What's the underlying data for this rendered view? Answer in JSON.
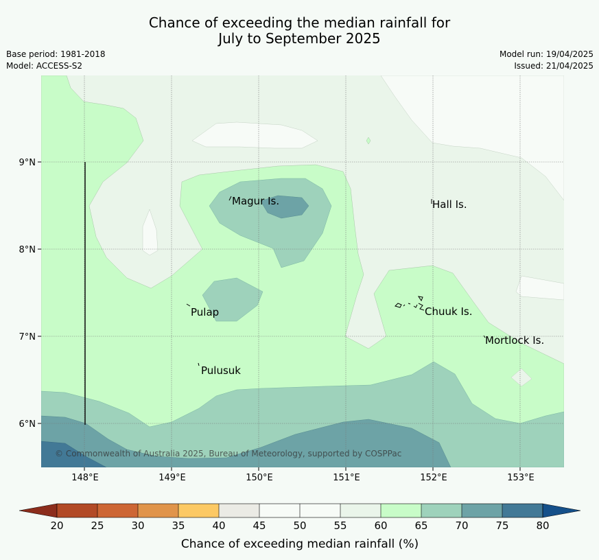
{
  "title_line1": "Chance of exceeding the median rainfall for",
  "title_line2": "July to September 2025",
  "meta_left": {
    "base_period": "Base period: 1981-2018",
    "model": "Model: ACCESS-S2"
  },
  "meta_right": {
    "model_run": "Model run: 19/04/2025",
    "issued": "Issued: 21/04/2025"
  },
  "map": {
    "lon_labels": [
      "148°E",
      "149°E",
      "150°E",
      "151°E",
      "152°E",
      "153°E"
    ],
    "lat_labels": [
      "9°N",
      "8°N",
      "7°N",
      "6°N"
    ],
    "places": {
      "magur": "Magur Is.",
      "hall": "Hall Is.",
      "pulap": "Pulap",
      "chuuk": "Chuuk Is.",
      "mortlock": "Mortlock Is.",
      "pulusuk": "Pulusuk"
    },
    "copyright": "© Commonwealth of Australia 2025, Bureau of Meteorology, supported by COSPPac"
  },
  "colorbar": {
    "ticks": [
      "20",
      "25",
      "30",
      "35",
      "40",
      "45",
      "50",
      "55",
      "60",
      "65",
      "70",
      "75",
      "80"
    ],
    "label": "Chance of exceeding median rainfall (%)",
    "colors": {
      "below_20": "#8c2d1c",
      "20_25": "#b24a26",
      "25_30": "#cd6634",
      "30_35": "#e0944a",
      "35_40": "#fcc964",
      "40_45": "#ebebe5",
      "45_50": "#f7fbf7",
      "50_55": "#f7fbf7",
      "55_60": "#eaf5ea",
      "60_65": "#c8fcc8",
      "65_70": "#9ed2bb",
      "70_75": "#6da3a6",
      "75_80": "#427996",
      "above_80": "#15508a"
    }
  }
}
